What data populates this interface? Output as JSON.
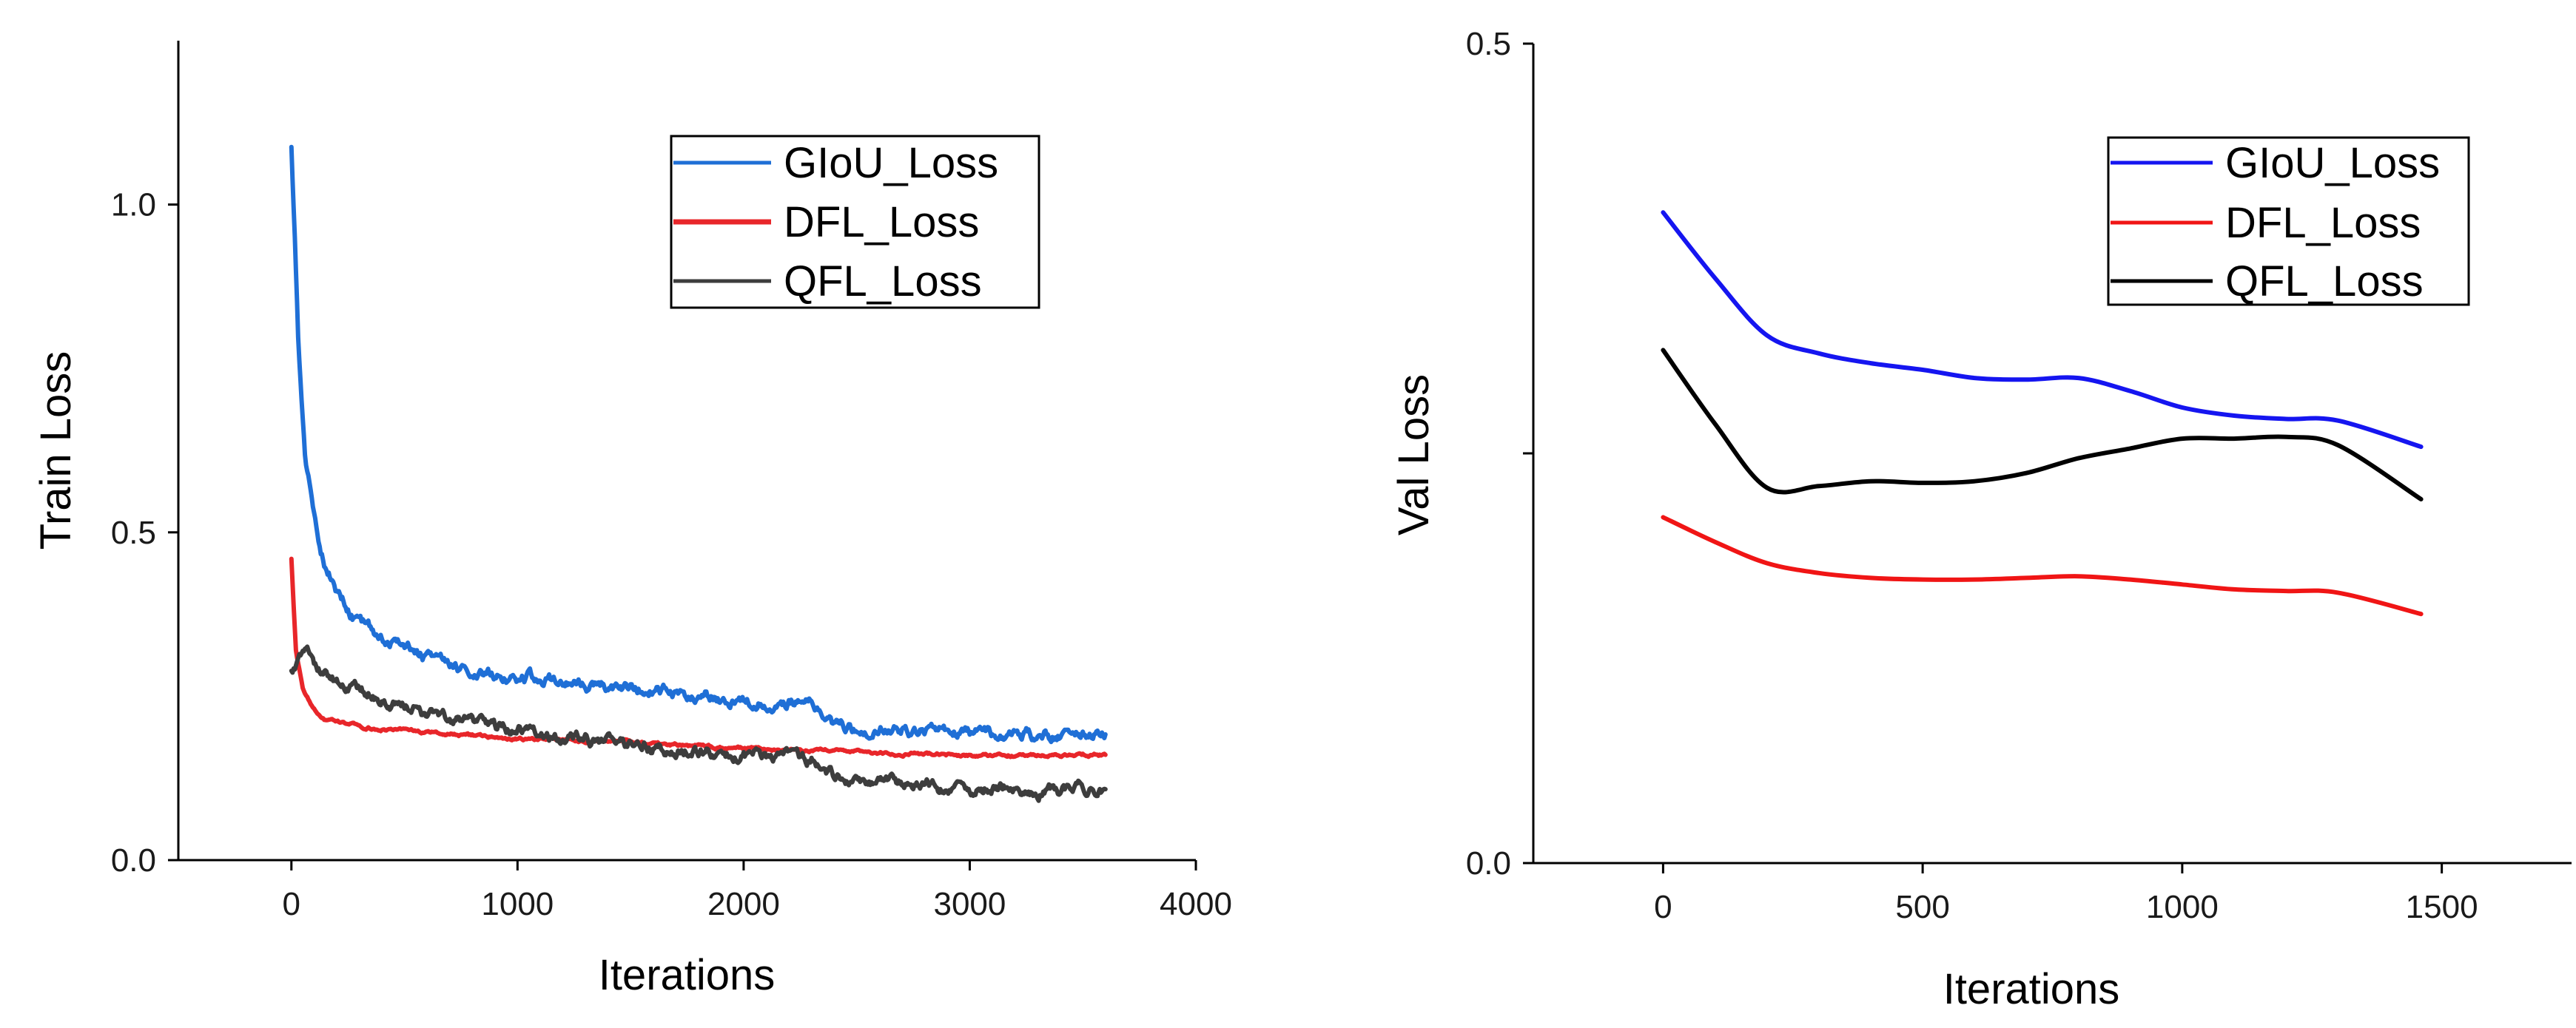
{
  "chart_data": [
    {
      "type": "line",
      "ylabel": "Train Loss",
      "xlabel": "Iterations",
      "xlim": [
        -500,
        4000
      ],
      "ylim": [
        0,
        1.25
      ],
      "xticks": [
        0,
        1000,
        2000,
        3000,
        4000
      ],
      "yticks": [
        0.0,
        0.5,
        1.0
      ],
      "xtick_labels": [
        "0",
        "1000",
        "2000",
        "3000",
        "4000"
      ],
      "ytick_labels": [
        "0.0",
        "0.5",
        "1.0"
      ],
      "legend_position": "top-right",
      "grid": false,
      "series": [
        {
          "name": "GIoU_Loss",
          "color": "#1f6fd6",
          "noise": 0.006,
          "x": [
            0,
            30,
            60,
            100,
            150,
            200,
            300,
            400,
            500,
            600,
            700,
            800,
            1000,
            1200,
            1400,
            1600,
            1800,
            2000,
            2200,
            2300,
            2400,
            2500,
            2700,
            2900,
            3100,
            3300,
            3500,
            3600
          ],
          "y": [
            1.09,
            0.8,
            0.62,
            0.52,
            0.45,
            0.41,
            0.36,
            0.345,
            0.33,
            0.31,
            0.3,
            0.29,
            0.28,
            0.275,
            0.265,
            0.26,
            0.255,
            0.24,
            0.245,
            0.24,
            0.205,
            0.2,
            0.2,
            0.195,
            0.19,
            0.19,
            0.19,
            0.195
          ]
        },
        {
          "name": "DFL_Loss",
          "color": "#e8262a",
          "noise": 0.0015,
          "x": [
            0,
            20,
            50,
            100,
            150,
            200,
            300,
            400,
            600,
            800,
            1000,
            1500,
            2000,
            2500,
            3000,
            3600
          ],
          "y": [
            0.46,
            0.32,
            0.26,
            0.23,
            0.215,
            0.21,
            0.205,
            0.2,
            0.195,
            0.19,
            0.185,
            0.18,
            0.17,
            0.165,
            0.16,
            0.16
          ]
        },
        {
          "name": "QFL_Loss",
          "color": "#3d3d3d",
          "noise": 0.006,
          "x": [
            0,
            50,
            100,
            200,
            300,
            400,
            500,
            600,
            800,
            1000,
            1200,
            1400,
            1600,
            1800,
            2000,
            2200,
            2300,
            2400,
            2500,
            2700,
            2900,
            3100,
            3300,
            3500,
            3600
          ],
          "y": [
            0.29,
            0.32,
            0.3,
            0.27,
            0.26,
            0.245,
            0.235,
            0.22,
            0.21,
            0.2,
            0.19,
            0.18,
            0.17,
            0.165,
            0.16,
            0.155,
            0.155,
            0.13,
            0.12,
            0.115,
            0.11,
            0.11,
            0.105,
            0.11,
            0.11
          ]
        }
      ]
    },
    {
      "type": "line",
      "ylabel": "Val Loss",
      "xlabel": "Iterations",
      "xlim": [
        -250,
        1750
      ],
      "ylim": [
        0.0,
        0.5
      ],
      "xticks": [
        0,
        500,
        1000,
        1500
      ],
      "yticks": [
        0.0,
        0.25,
        0.5
      ],
      "xtick_labels": [
        "0",
        "500",
        "1000",
        "1500"
      ],
      "ytick_labels": [
        "0.0",
        "",
        "0.5"
      ],
      "legend_position": "top-right",
      "grid": false,
      "series": [
        {
          "name": "GIoU_Loss",
          "color": "#1515f0",
          "noise": 0,
          "x": [
            0,
            100,
            200,
            300,
            400,
            500,
            600,
            700,
            800,
            900,
            1000,
            1100,
            1200,
            1300,
            1460
          ],
          "y": [
            0.397,
            0.357,
            0.322,
            0.311,
            0.305,
            0.301,
            0.296,
            0.295,
            0.296,
            0.288,
            0.278,
            0.273,
            0.271,
            0.27,
            0.254
          ]
        },
        {
          "name": "DFL_Loss",
          "color": "#f01515",
          "noise": 0,
          "x": [
            0,
            100,
            200,
            300,
            400,
            500,
            600,
            700,
            800,
            900,
            1000,
            1100,
            1200,
            1300,
            1460
          ],
          "y": [
            0.211,
            0.196,
            0.183,
            0.177,
            0.174,
            0.173,
            0.173,
            0.174,
            0.175,
            0.173,
            0.17,
            0.167,
            0.166,
            0.165,
            0.152
          ]
        },
        {
          "name": "QFL_Loss",
          "color": "#000000",
          "noise": 0,
          "x": [
            0,
            100,
            200,
            300,
            400,
            500,
            600,
            700,
            800,
            900,
            1000,
            1100,
            1200,
            1300,
            1460
          ],
          "y": [
            0.313,
            0.268,
            0.229,
            0.23,
            0.233,
            0.232,
            0.233,
            0.238,
            0.247,
            0.253,
            0.259,
            0.259,
            0.26,
            0.255,
            0.222
          ]
        }
      ]
    }
  ]
}
